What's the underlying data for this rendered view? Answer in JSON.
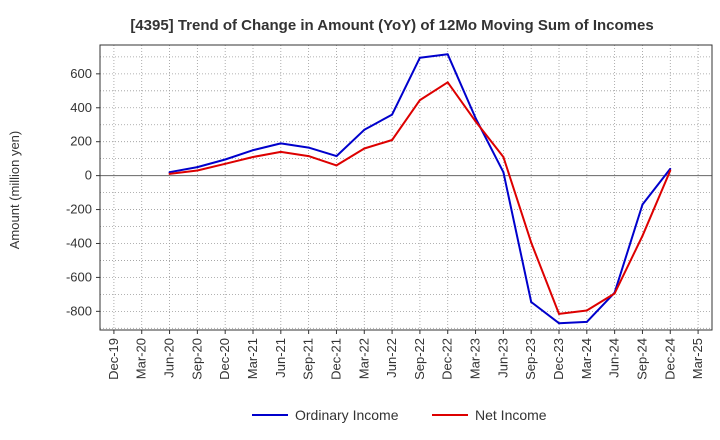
{
  "chart_data": {
    "type": "line",
    "title": "[4395]  Trend of Change in Amount (YoY) of 12Mo Moving Sum of Incomes",
    "xlabel": "",
    "ylabel": "Amount (million yen)",
    "ylim": [
      -910,
      770
    ],
    "yticks": [
      600,
      400,
      200,
      0,
      -200,
      -400,
      -600,
      -800
    ],
    "categories": [
      "Dec-19",
      "Mar-20",
      "Jun-20",
      "Sep-20",
      "Dec-20",
      "Mar-21",
      "Jun-21",
      "Sep-21",
      "Dec-21",
      "Mar-22",
      "Jun-22",
      "Sep-22",
      "Dec-22",
      "Mar-23",
      "Jun-23",
      "Sep-23",
      "Dec-23",
      "Mar-24",
      "Jun-24",
      "Sep-24",
      "Dec-24",
      "Mar-25"
    ],
    "grid": true,
    "legend_position": "bottom",
    "series": [
      {
        "name": "Ordinary Income",
        "color": "#0000cc",
        "values": [
          null,
          null,
          20,
          50,
          95,
          150,
          190,
          165,
          115,
          270,
          360,
          695,
          715,
          340,
          20,
          -745,
          -870,
          -862,
          -690,
          -170,
          40,
          null
        ]
      },
      {
        "name": "Net Income",
        "color": "#dd0000",
        "values": [
          null,
          null,
          10,
          30,
          70,
          110,
          140,
          115,
          60,
          160,
          210,
          445,
          550,
          320,
          110,
          -395,
          -815,
          -795,
          -695,
          -355,
          30,
          null
        ]
      }
    ]
  }
}
